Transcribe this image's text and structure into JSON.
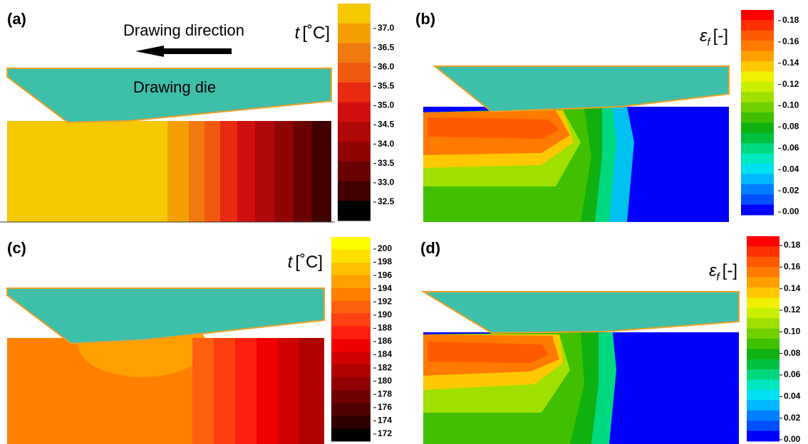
{
  "panels": [
    {
      "label": "(a)",
      "annotations": [
        "Drawing direction",
        "Drawing die"
      ],
      "colorbar": {
        "title": {
          "symbol": "t",
          "unit": "[˚C]"
        },
        "ticks": [
          "37.0",
          "36.5",
          "36.0",
          "35.5",
          "35.0",
          "34.5",
          "34.0",
          "33.5",
          "33.0",
          "32.5"
        ],
        "colors": [
          "#f5c800",
          "#f5a000",
          "#f07a10",
          "#f05a10",
          "#e82a10",
          "#d01010",
          "#b00808",
          "#900404",
          "#6a0202",
          "#400000",
          "#000000"
        ]
      }
    },
    {
      "label": "(b)",
      "colorbar": {
        "title": {
          "symbol": "ε",
          "subscript": "f",
          "unit": "[-]"
        },
        "ticks": [
          "0.18",
          "0.16",
          "0.14",
          "0.12",
          "0.10",
          "0.08",
          "0.06",
          "0.04",
          "0.02",
          "0.00"
        ],
        "colors": [
          "#ff0000",
          "#ff3000",
          "#ff5a00",
          "#ff7a00",
          "#ffa000",
          "#ffc800",
          "#f0f000",
          "#c8f000",
          "#a0e000",
          "#70d000",
          "#40c000",
          "#10b010",
          "#00c040",
          "#00d880",
          "#00e8c0",
          "#00e0f0",
          "#00b8ff",
          "#0080ff",
          "#0050ff",
          "#0000ff"
        ]
      }
    },
    {
      "label": "(c)",
      "colorbar": {
        "title": {
          "symbol": "t",
          "unit": "[˚C]"
        },
        "ticks": [
          "200",
          "198",
          "196",
          "194",
          "192",
          "190",
          "188",
          "186",
          "184",
          "182",
          "180",
          "178",
          "176",
          "174",
          "172"
        ],
        "colors": [
          "#ffff00",
          "#ffe000",
          "#ffc000",
          "#ffa000",
          "#ff8000",
          "#ff6010",
          "#ff4010",
          "#ff2010",
          "#f00000",
          "#d00000",
          "#b00000",
          "#900000",
          "#700000",
          "#500000",
          "#300000",
          "#000000"
        ]
      }
    },
    {
      "label": "(d)",
      "colorbar": {
        "title": {
          "symbol": "ε",
          "subscript": "f",
          "unit": "[-]"
        },
        "ticks": [
          "0.18",
          "0.16",
          "0.14",
          "0.12",
          "0.10",
          "0.08",
          "0.06",
          "0.04",
          "0.02",
          "0.00"
        ],
        "colors": [
          "#ff0000",
          "#ff3000",
          "#ff5a00",
          "#ff7a00",
          "#ffa000",
          "#ffc800",
          "#f0f000",
          "#c8f000",
          "#a0e000",
          "#70d000",
          "#40c000",
          "#10b010",
          "#00c040",
          "#00d880",
          "#00e8c0",
          "#00e0f0",
          "#00b8ff",
          "#0080ff",
          "#0050ff",
          "#0000ff"
        ]
      }
    }
  ]
}
